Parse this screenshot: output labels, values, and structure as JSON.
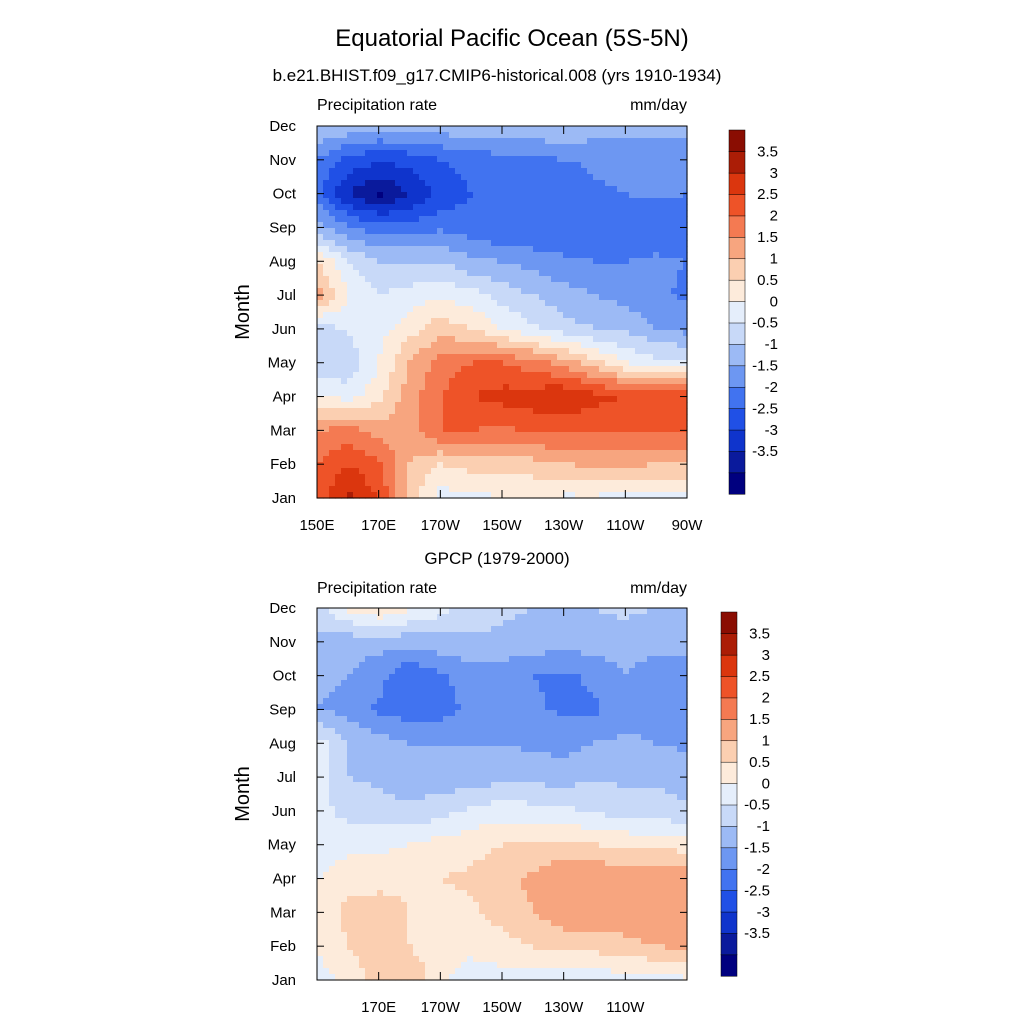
{
  "figure": {
    "title": "Equatorial Pacific Ocean (5S-5N)"
  },
  "colorbar": {
    "levels": [
      -3.5,
      -3,
      -2.5,
      -2,
      -1.5,
      -1,
      -0.5,
      0,
      0.5,
      1,
      1.5,
      2,
      2.5,
      3,
      3.5
    ],
    "labels": [
      "3.5",
      "3",
      "2.5",
      "2",
      "1.5",
      "1",
      "0.5",
      "0",
      "-0.5",
      "-1",
      "-1.5",
      "-2",
      "-2.5",
      "-3",
      "-3.5"
    ],
    "colors": [
      "#00007f",
      "#0a1a9c",
      "#0f34cc",
      "#2050e6",
      "#4173f0",
      "#6d97f2",
      "#9cbaf5",
      "#c8d9f8",
      "#e5eefb",
      "#fdebdb",
      "#fbcfb1",
      "#f7a57f",
      "#f47a52",
      "#ee5328",
      "#db360e",
      "#ab1d06",
      "#8a0d02"
    ]
  },
  "chart_data": [
    {
      "type": "heatmap",
      "title": "b.e21.BHIST.f09_g17.CMIP6-historical.008 (yrs 1910-1934)",
      "left_label": "Precipitation rate",
      "right_label": "mm/day",
      "xlabel": "",
      "ylabel": "Month",
      "x_units": "degrees east",
      "xlim": [
        150,
        270
      ],
      "x_tick_values": [
        150,
        170,
        190,
        210,
        230,
        250,
        270
      ],
      "x_tick_labels": [
        "150E",
        "170E",
        "170W",
        "150W",
        "130W",
        "110W",
        "90W"
      ],
      "y_tick_labels": [
        "Jan",
        "Feb",
        "Mar",
        "Apr",
        "May",
        "Jun",
        "Jul",
        "Aug",
        "Sep",
        "Oct",
        "Nov",
        "Dec"
      ],
      "colorbar_labels": [
        "3.5",
        "3",
        "2.5",
        "2",
        "1.5",
        "1",
        "0.5",
        "0",
        "-0.5",
        "-1",
        "-1.5",
        "-2",
        "-2.5",
        "-3",
        "-3.5"
      ],
      "x": [
        150,
        160,
        170,
        180,
        190,
        200,
        210,
        220,
        230,
        240,
        250,
        260,
        270
      ],
      "months": [
        "Jan",
        "Feb",
        "Mar",
        "Apr",
        "May",
        "Jun",
        "Jul",
        "Aug",
        "Sep",
        "Oct",
        "Nov",
        "Dec"
      ],
      "values": [
        [
          2.8,
          3.6,
          3.0,
          1.2,
          0.3,
          0.3,
          0.5,
          0.5,
          0.4,
          0.4,
          0.3,
          0.3,
          0.3
        ],
        [
          2.5,
          3.0,
          2.6,
          1.5,
          1.0,
          1.2,
          1.2,
          1.3,
          1.5,
          1.6,
          1.6,
          1.5,
          1.5
        ],
        [
          2.0,
          2.2,
          1.8,
          1.8,
          2.5,
          2.5,
          2.4,
          2.6,
          2.6,
          2.5,
          2.5,
          2.5,
          2.6
        ],
        [
          0.6,
          0.3,
          0.8,
          1.8,
          2.5,
          3.0,
          3.2,
          3.3,
          3.5,
          3.2,
          3.0,
          2.8,
          3.0
        ],
        [
          -0.5,
          -0.4,
          0.5,
          1.5,
          2.2,
          2.5,
          2.5,
          2.2,
          1.8,
          1.2,
          0.5,
          0.2,
          0.2
        ],
        [
          -0.3,
          0.1,
          0.3,
          0.8,
          1.3,
          1.0,
          0.5,
          0.1,
          -0.3,
          -0.5,
          -0.6,
          -1.0,
          -1.2
        ],
        [
          1.8,
          0.5,
          0.0,
          0.2,
          0.4,
          0.2,
          -0.2,
          -0.5,
          -0.8,
          -1.0,
          -1.2,
          -1.4,
          -1.6
        ],
        [
          1.0,
          0.0,
          -0.5,
          -0.5,
          -0.5,
          -0.9,
          -1.0,
          -1.2,
          -1.4,
          -1.5,
          -1.5,
          -1.4,
          -1.5
        ],
        [
          -0.8,
          -1.4,
          -1.8,
          -1.8,
          -1.6,
          -1.8,
          -2.0,
          -2.0,
          -2.0,
          -1.8,
          -1.8,
          -1.9,
          -2.0
        ],
        [
          -1.8,
          -3.0,
          -3.6,
          -3.0,
          -2.4,
          -2.0,
          -2.0,
          -2.0,
          -1.9,
          -1.6,
          -1.5,
          -1.4,
          -1.5
        ],
        [
          -1.5,
          -2.2,
          -2.4,
          -2.3,
          -2.0,
          -1.8,
          -1.7,
          -1.6,
          -1.5,
          -1.4,
          -1.3,
          -1.3,
          -1.4
        ],
        [
          -0.4,
          -0.6,
          -0.8,
          -0.8,
          -0.7,
          -0.6,
          -0.6,
          -0.6,
          -0.5,
          -0.7,
          -0.8,
          -0.8,
          -0.8
        ]
      ]
    },
    {
      "type": "heatmap",
      "title": "GPCP (1979-2000)",
      "left_label": "Precipitation rate",
      "right_label": "mm/day",
      "xlabel": "",
      "ylabel": "Month",
      "x_units": "degrees east",
      "xlim": [
        150,
        270
      ],
      "x_tick_values": [
        170,
        190,
        210,
        230,
        250
      ],
      "x_tick_labels": [
        "170E",
        "170W",
        "150W",
        "130W",
        "110W"
      ],
      "y_tick_labels": [
        "Jan",
        "Feb",
        "Mar",
        "Apr",
        "May",
        "Jun",
        "Jul",
        "Aug",
        "Sep",
        "Oct",
        "Nov",
        "Dec"
      ],
      "colorbar_labels": [
        "3.5",
        "3",
        "2.5",
        "2",
        "1.5",
        "1",
        "0.5",
        "0",
        "-0.5",
        "-1",
        "-1.5",
        "-2",
        "-2.5",
        "-3",
        "-3.5"
      ],
      "x": [
        150,
        160,
        170,
        180,
        190,
        200,
        210,
        220,
        230,
        240,
        250,
        260,
        270
      ],
      "months": [
        "Jan",
        "Feb",
        "Mar",
        "Apr",
        "May",
        "Jun",
        "Jul",
        "Aug",
        "Sep",
        "Oct",
        "Nov",
        "Dec"
      ],
      "values": [
        [
          0.3,
          0.6,
          1.2,
          1.5,
          0.6,
          0.3,
          0.3,
          0.3,
          0.2,
          0.1,
          0.3,
          0.3,
          0.4
        ],
        [
          0.5,
          1.0,
          1.5,
          1.0,
          0.6,
          0.6,
          0.8,
          1.0,
          1.2,
          1.2,
          1.3,
          1.5,
          1.6
        ],
        [
          0.6,
          1.2,
          1.3,
          1.0,
          0.8,
          0.9,
          1.2,
          1.5,
          1.8,
          1.9,
          1.9,
          2.0,
          1.8
        ],
        [
          0.5,
          0.7,
          0.8,
          0.9,
          1.0,
          1.1,
          1.4,
          1.6,
          2.0,
          2.0,
          1.8,
          2.0,
          1.8
        ],
        [
          0.3,
          0.4,
          0.4,
          0.5,
          0.7,
          0.8,
          1.0,
          1.0,
          1.1,
          1.0,
          0.9,
          0.8,
          0.8
        ],
        [
          0.2,
          -0.2,
          -0.3,
          -0.4,
          -0.2,
          0.1,
          0.3,
          0.2,
          0.1,
          -0.1,
          -0.2,
          -0.3,
          -0.4
        ],
        [
          0.4,
          -0.5,
          -0.6,
          -0.8,
          -0.8,
          -0.8,
          -0.7,
          -0.7,
          -0.7,
          -0.6,
          -0.6,
          -0.6,
          -0.7
        ],
        [
          0.3,
          -0.5,
          -0.8,
          -1.0,
          -1.0,
          -1.0,
          -1.0,
          -1.1,
          -1.2,
          -1.0,
          -0.9,
          -1.0,
          -1.1
        ],
        [
          -1.0,
          -1.2,
          -1.6,
          -1.8,
          -1.7,
          -1.4,
          -1.3,
          -1.4,
          -1.6,
          -1.6,
          -1.2,
          -1.3,
          -1.4
        ],
        [
          -0.8,
          -1.0,
          -1.3,
          -2.0,
          -1.6,
          -1.2,
          -1.3,
          -1.5,
          -1.6,
          -1.4,
          -1.0,
          -1.3,
          -1.4
        ],
        [
          -0.6,
          -0.8,
          -0.8,
          -0.8,
          -0.7,
          -0.6,
          -0.6,
          -0.7,
          -0.8,
          -0.7,
          -0.7,
          -0.8,
          -0.8
        ],
        [
          -0.2,
          0.6,
          1.0,
          0.6,
          0.2,
          -0.2,
          -0.4,
          -0.5,
          -0.5,
          -0.5,
          -0.4,
          -0.5,
          -0.5
        ]
      ]
    }
  ]
}
